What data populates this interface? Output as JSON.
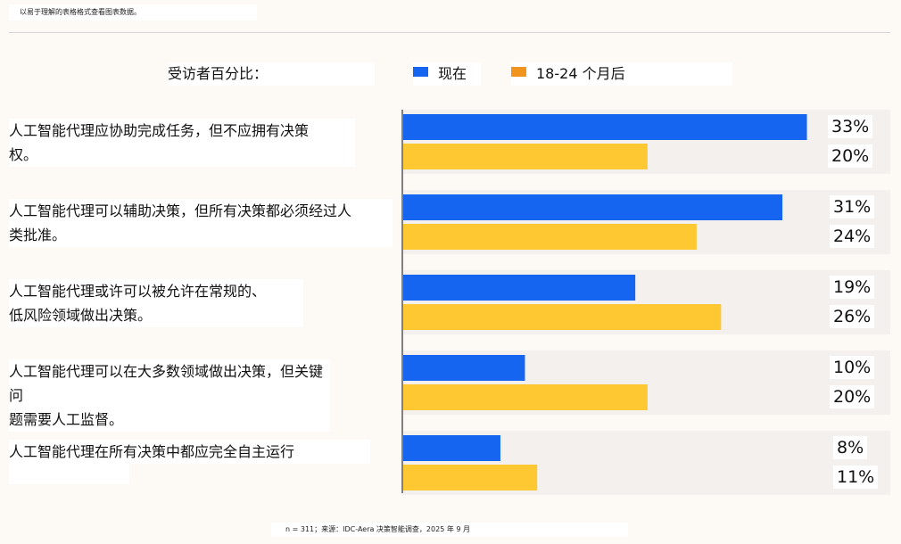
{
  "header": {
    "table_note": "以易于理解的表格格式查看图表数据。"
  },
  "legend": {
    "title": "受访者百分比：",
    "items": [
      {
        "label": "现在",
        "color": "#1565f0"
      },
      {
        "label": "18-24 个月后",
        "color": "#f1941d"
      }
    ]
  },
  "chart_data": {
    "type": "bar",
    "orientation": "horizontal",
    "unit": "%",
    "categories": [
      "人工智能代理应协助完成任务，但不应拥有决策\n权。",
      "人工智能代理可以辅助决策，但所有决策都必须经过人\n类批准。",
      "人工智能代理或许可以被允许在常规的、\n低风险领域做出决策。",
      "人工智能代理可以在大多数领域做出决策，但关键问\n题需要人工监督。",
      "人工智能代理在所有决策中都应完全自主运行"
    ],
    "series": [
      {
        "name": "现在",
        "color": "#1565f0",
        "values": [
          33,
          31,
          19,
          10,
          8
        ],
        "labels": [
          "33%",
          "31%",
          "19%",
          "10%",
          "8%"
        ]
      },
      {
        "name": "18-24 个月后",
        "color": "#fec832",
        "values": [
          20,
          24,
          26,
          20,
          11
        ],
        "labels": [
          "20%",
          "24%",
          "26%",
          "20%",
          "11%"
        ]
      }
    ],
    "xlim": [
      0,
      39.8
    ],
    "legend_position": "top",
    "band_color": "#f4f0ed"
  },
  "footer": {
    "source": "n = 311；来源：IDC-Aera 决策智能调查，2025 年 9 月"
  }
}
